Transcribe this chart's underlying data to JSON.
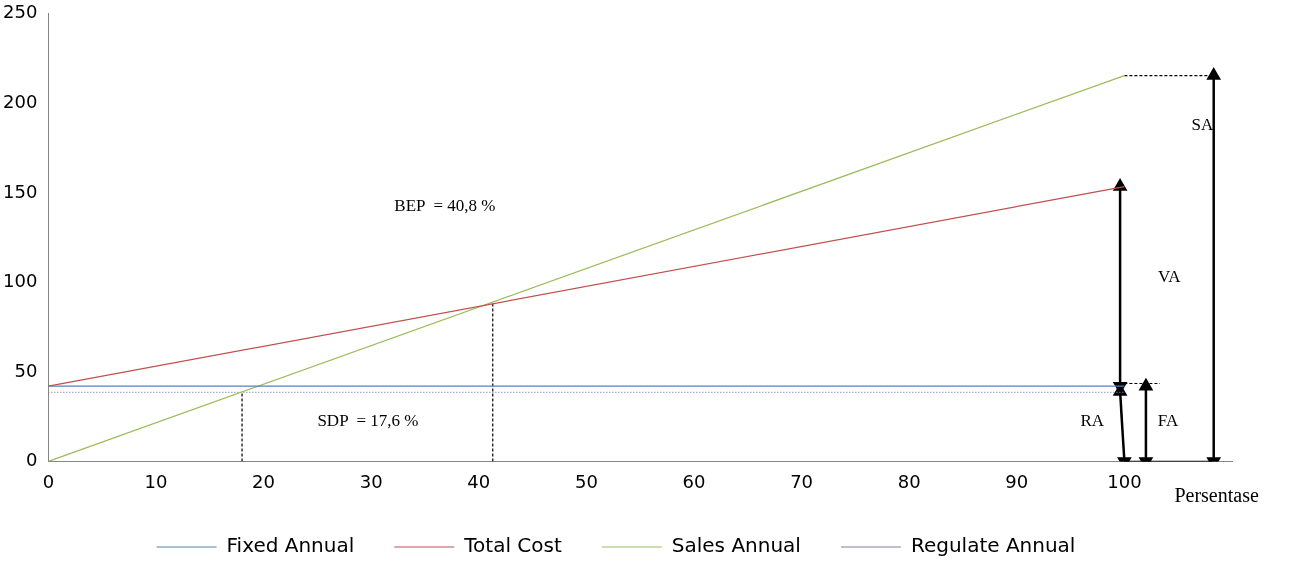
{
  "chart_data": {
    "type": "line",
    "xlabel": "Persentase",
    "xlim": [
      0,
      110
    ],
    "xticks": [
      0,
      10,
      20,
      30,
      40,
      50,
      60,
      70,
      80,
      90,
      100
    ],
    "ylim": [
      0,
      250
    ],
    "yticks": [
      0,
      50,
      100,
      150,
      200,
      250
    ],
    "grid": false,
    "legend": "bottom",
    "series": [
      {
        "name": "Fixed Annual",
        "color": "#4f81bd",
        "x": [
          0,
          100
        ],
        "values": [
          42,
          42
        ]
      },
      {
        "name": "Total Cost",
        "color": "#c0504d",
        "x": [
          0,
          100
        ],
        "values": [
          42,
          153.5
        ]
      },
      {
        "name": "Sales Annual",
        "color": "#9bbb59",
        "x": [
          0,
          100
        ],
        "values": [
          0,
          215.5
        ]
      },
      {
        "name": "Regulate Annual",
        "color": "#7f7fa8",
        "x": [
          0,
          100
        ],
        "values": [
          38.5,
          38.5
        ],
        "line_style": "dotted"
      },
      {
        "color": "#000000",
        "x": [
          41.3,
          41.3
        ],
        "values": [
          0,
          88
        ],
        "line_style": "dashed"
      },
      {
        "color": "#000000",
        "x": [
          18,
          18
        ],
        "values": [
          0,
          39
        ],
        "line_style": "dashed"
      },
      {
        "color": "#000000",
        "x": [
          100,
          108.1
        ],
        "values": [
          215.5,
          215.5
        ],
        "line_style": "dashed"
      },
      {
        "color": "#000000",
        "x": [
          100,
          103.3
        ],
        "values": [
          43.5,
          43.5
        ],
        "line_style": "dashed"
      },
      {
        "color": "#000000",
        "x": [
          100,
          108.1
        ],
        "values": [
          0,
          0
        ],
        "line_style": "solid"
      },
      {
        "color": "#000000",
        "x": [
          108.3,
          108.3
        ],
        "values": [
          0,
          215.5
        ],
        "marker": "triangle"
      },
      {
        "color": "#000000",
        "x": [
          99.6,
          99.6
        ],
        "values": [
          42,
          153.5
        ],
        "marker": "triangle"
      },
      {
        "color": "#000000",
        "x": [
          100,
          99.6
        ],
        "values": [
          0,
          39
        ],
        "marker": "triangle"
      },
      {
        "color": "#000000",
        "x": [
          102,
          102
        ],
        "values": [
          0,
          42
        ],
        "marker": "triangle"
      }
    ],
    "annotations": [
      "BEP  = 40,8 %",
      "SDP  = 17,6 %",
      "SA",
      "VA",
      "RA",
      "FA"
    ]
  }
}
